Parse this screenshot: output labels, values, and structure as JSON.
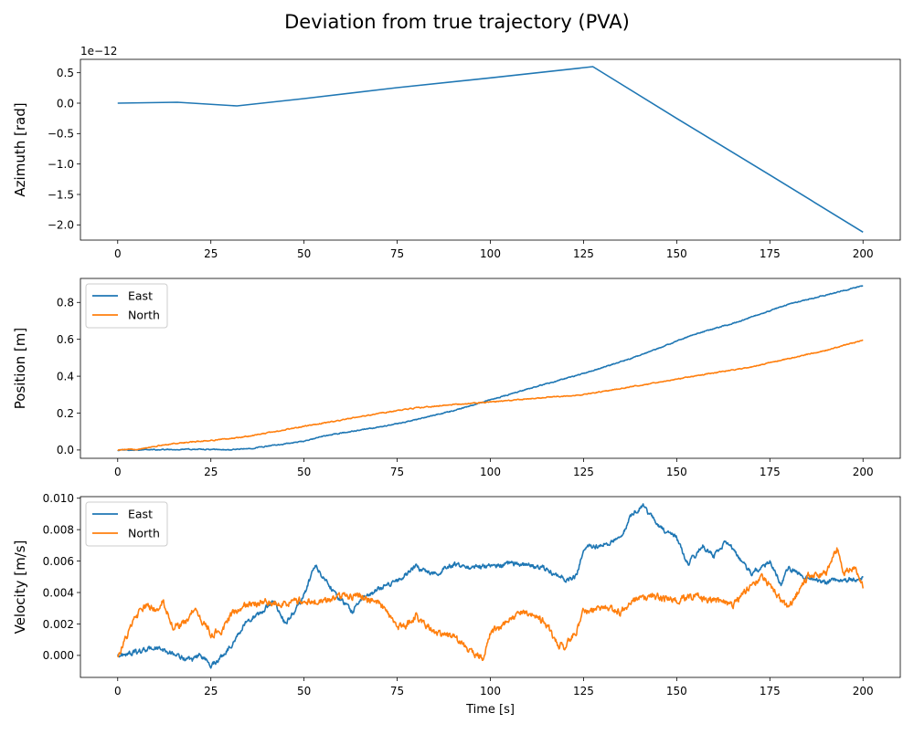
{
  "chart_data": [
    {
      "type": "line",
      "title": "Deviation from true trajectory (PVA)",
      "xlabel": "",
      "ylabel": "Azimuth [rad]",
      "offset_text": "1e−12",
      "xlim": [
        -10,
        210
      ],
      "ylim": [
        -2.25,
        0.72
      ],
      "xticks": [
        0,
        25,
        50,
        75,
        100,
        125,
        150,
        175,
        200
      ],
      "yticks": [
        0.5,
        0.0,
        -0.5,
        -1.0,
        -1.5,
        -2.0
      ],
      "ytick_labels": [
        "0.5",
        "0.0",
        "−0.5",
        "−1.0",
        "−1.5",
        "−2.0"
      ],
      "legend": null,
      "series": [
        {
          "name": "",
          "color": "#1f77b4",
          "x": [
            0,
            16,
            32,
            50,
            75,
            100,
            127.5,
            150,
            175,
            200
          ],
          "y": [
            0.0,
            0.015,
            -0.045,
            0.075,
            0.255,
            0.415,
            0.6,
            -0.25,
            -1.18,
            -2.12
          ]
        }
      ]
    },
    {
      "type": "line",
      "xlabel": "",
      "ylabel": "Position [m]",
      "xlim": [
        -10,
        210
      ],
      "ylim": [
        -0.045,
        0.93
      ],
      "xticks": [
        0,
        25,
        50,
        75,
        100,
        125,
        150,
        175,
        200
      ],
      "yticks": [
        0.0,
        0.2,
        0.4,
        0.6,
        0.8
      ],
      "ytick_labels": [
        "0.0",
        "0.2",
        "0.4",
        "0.6",
        "0.8"
      ],
      "legend": "upper-left",
      "series": [
        {
          "name": "East",
          "color": "#1f77b4",
          "x": [
            0,
            10,
            20,
            30,
            35,
            40,
            50,
            55,
            60,
            70,
            75,
            80,
            90,
            100,
            110,
            125,
            137,
            145,
            155,
            165,
            175,
            180,
            190,
            200
          ],
          "y": [
            0.0,
            0.002,
            0.004,
            0.001,
            0.007,
            0.02,
            0.047,
            0.074,
            0.092,
            0.123,
            0.143,
            0.164,
            0.213,
            0.272,
            0.33,
            0.415,
            0.49,
            0.55,
            0.63,
            0.685,
            0.755,
            0.79,
            0.84,
            0.89
          ],
          "noise": 0.002
        },
        {
          "name": "North",
          "color": "#ff7f0e",
          "x": [
            0,
            5,
            10,
            15,
            25,
            33,
            40,
            50,
            60,
            70,
            80,
            90,
            100,
            115,
            125,
            137,
            150,
            160,
            170,
            175,
            180,
            190,
            200
          ],
          "y": [
            0.0,
            0.004,
            0.02,
            0.035,
            0.052,
            0.068,
            0.092,
            0.128,
            0.162,
            0.198,
            0.228,
            0.246,
            0.26,
            0.285,
            0.3,
            0.34,
            0.385,
            0.418,
            0.45,
            0.473,
            0.495,
            0.54,
            0.595
          ],
          "noise": 0.002
        }
      ]
    },
    {
      "type": "line",
      "xlabel": "Time [s]",
      "ylabel": "Velocity [m/s]",
      "xlim": [
        -10,
        210
      ],
      "ylim": [
        -0.0014,
        0.0101
      ],
      "xticks": [
        0,
        25,
        50,
        75,
        100,
        125,
        150,
        175,
        200
      ],
      "yticks": [
        0.0,
        0.002,
        0.004,
        0.006,
        0.008,
        0.01
      ],
      "ytick_labels": [
        "0.000",
        "0.002",
        "0.004",
        "0.006",
        "0.008",
        "0.010"
      ],
      "legend": "upper-left",
      "series": [
        {
          "name": "East",
          "color": "#1f77b4",
          "x": [
            0,
            5,
            10,
            15,
            20,
            22,
            25,
            27,
            30,
            35,
            38,
            42,
            45,
            48,
            50,
            53,
            55,
            60,
            63,
            65,
            70,
            75,
            80,
            85,
            90,
            95,
            100,
            105,
            110,
            115,
            120,
            123,
            125,
            130,
            135,
            138,
            141,
            145,
            150,
            153,
            157,
            160,
            163,
            165,
            170,
            175,
            178,
            180,
            185,
            190,
            195,
            200
          ],
          "y": [
            0.0,
            0.0002,
            0.0005,
            0.0001,
            -0.0004,
            0.0001,
            -0.0006,
            -0.0003,
            0.0005,
            0.0023,
            0.0026,
            0.0035,
            0.002,
            0.003,
            0.0038,
            0.0058,
            0.005,
            0.0035,
            0.0028,
            0.0035,
            0.0042,
            0.0048,
            0.0056,
            0.0052,
            0.0058,
            0.0056,
            0.0057,
            0.0058,
            0.0058,
            0.0055,
            0.0048,
            0.005,
            0.0068,
            0.007,
            0.0075,
            0.009,
            0.0095,
            0.0082,
            0.0075,
            0.0058,
            0.007,
            0.0063,
            0.0072,
            0.0068,
            0.0052,
            0.006,
            0.0045,
            0.0055,
            0.005,
            0.0047,
            0.0048,
            0.0049
          ],
          "noise": 0.00012
        },
        {
          "name": "North",
          "color": "#ff7f0e",
          "x": [
            0,
            2,
            5,
            8,
            10,
            12,
            15,
            18,
            20,
            22,
            25,
            28,
            30,
            35,
            40,
            45,
            50,
            55,
            60,
            65,
            70,
            75,
            78,
            80,
            85,
            90,
            95,
            98,
            100,
            103,
            108,
            112,
            115,
            118,
            120,
            123,
            125,
            130,
            135,
            140,
            145,
            150,
            155,
            160,
            165,
            170,
            173,
            175,
            178,
            180,
            185,
            190,
            193,
            195,
            198,
            200
          ],
          "y": [
            0.0,
            0.001,
            0.0025,
            0.0032,
            0.0028,
            0.0035,
            0.0018,
            0.002,
            0.0028,
            0.0025,
            0.0013,
            0.0016,
            0.0025,
            0.0032,
            0.0034,
            0.0033,
            0.0035,
            0.0034,
            0.0038,
            0.0038,
            0.0033,
            0.0018,
            0.002,
            0.0025,
            0.0015,
            0.0012,
            0.0002,
            -0.0001,
            0.0015,
            0.0018,
            0.0028,
            0.0025,
            0.002,
            0.0008,
            0.0005,
            0.0015,
            0.0028,
            0.003,
            0.0028,
            0.0038,
            0.0037,
            0.0035,
            0.0038,
            0.0035,
            0.0032,
            0.0045,
            0.005,
            0.0045,
            0.0035,
            0.003,
            0.005,
            0.0052,
            0.0068,
            0.0052,
            0.0056,
            0.0045
          ],
          "noise": 0.00018
        }
      ]
    }
  ]
}
